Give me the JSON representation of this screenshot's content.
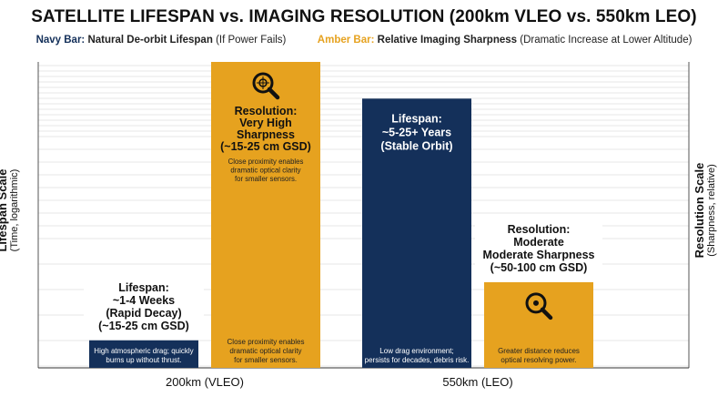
{
  "chart_data": {
    "type": "bar",
    "title": "SATELLITE LIFESPAN vs. IMAGING RESOLUTION (200km VLEO vs. 550km LEO)",
    "legend": {
      "navy_key": "Navy Bar:",
      "navy_text": "Natural De-orbit Lifespan",
      "navy_note": "(If Power Fails)",
      "amber_key": "Amber Bar:",
      "amber_text": "Relative Imaging Sharpness",
      "amber_note": "(Dramatic Increase at Lower Altitude)",
      "placement": "top-center"
    },
    "ylabel_left": "Lifespan Scale",
    "ylabel_left_sub": "(Time, logarithmic)",
    "ylabel_right": "Resolution Scale",
    "ylabel_right_sub": "(Sharpness, relative)",
    "ylim": [
      0,
      100
    ],
    "grid": true,
    "categories": [
      "200km (VLEO)",
      "550km (LEO)"
    ],
    "series": [
      {
        "name": "Natural De-orbit Lifespan",
        "color": "#14305a",
        "values": [
          9,
          88
        ],
        "labels": [
          [
            "Lifespan:",
            "~1-4 Weeks",
            "(Rapid Decay)",
            "(~15-25 cm GSD)"
          ],
          [
            "Lifespan:",
            "~5-25+ Years",
            "(Stable Orbit)"
          ]
        ],
        "notes": [
          [
            "High atmospheric drag; quickly",
            "burns up without thrust."
          ],
          [
            "Low drag environment;",
            "persists for decades, debris risk."
          ]
        ]
      },
      {
        "name": "Relative Imaging Sharpness",
        "color": "#e6a21f",
        "values": [
          100,
          28
        ],
        "labels": [
          [
            "Resolution:",
            "Very High",
            "Sharpness",
            "(~15-25 cm GSD)"
          ],
          [
            "Resolution:",
            "Moderate",
            "Moderate Sharpness",
            "(~50-100 cm GSD)"
          ]
        ],
        "notes": [
          [
            "Close proximity enables",
            "dramatic optical clarity",
            "for smaller sensors."
          ],
          [
            "Greater distance reduces",
            "optical resolving power."
          ]
        ],
        "top_notes": [
          [
            "Close proximity enables",
            "dramatic optical clarity",
            "for smaller sensors."
          ],
          []
        ],
        "icons": [
          "magnifier-target-icon",
          "magnifier-icon"
        ]
      }
    ]
  }
}
